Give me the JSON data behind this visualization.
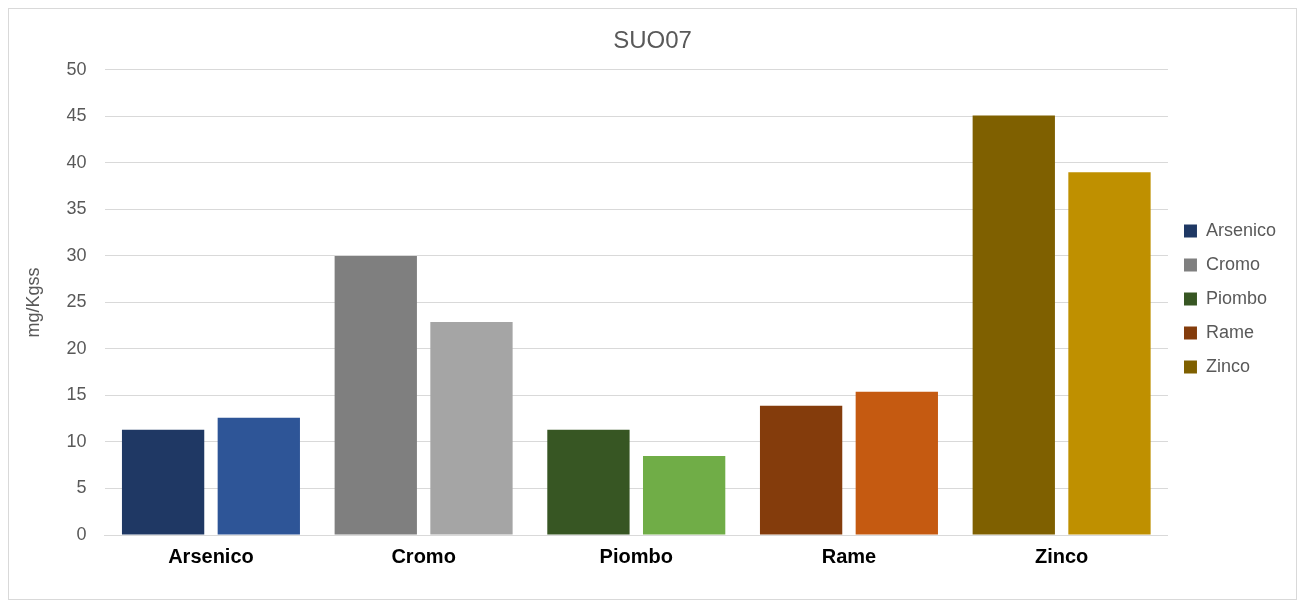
{
  "chart_data": {
    "type": "bar",
    "title": "SUO07",
    "ylabel": "mg/Kgss",
    "categories": [
      "Arsenico",
      "Cromo",
      "Piombo",
      "Rame",
      "Zinco"
    ],
    "series": [
      {
        "name": "Arsenico",
        "color": "#1f3864",
        "values": [
          11.3,
          null,
          null,
          null,
          null
        ]
      },
      {
        "color": "#2e5597",
        "values": [
          12.6,
          null,
          null,
          null,
          null
        ]
      },
      {
        "name": "Cromo",
        "color": "#7f7f7f",
        "values": [
          null,
          30.0,
          null,
          null,
          null
        ]
      },
      {
        "color": "#a5a5a5",
        "values": [
          null,
          22.9,
          null,
          null,
          null
        ]
      },
      {
        "name": "Piombo",
        "color": "#375623",
        "values": [
          null,
          null,
          11.3,
          null,
          null
        ]
      },
      {
        "color": "#70ad47",
        "values": [
          null,
          null,
          8.5,
          null,
          null
        ]
      },
      {
        "name": "Rame",
        "color": "#843c0c",
        "values": [
          null,
          null,
          null,
          13.9,
          null
        ]
      },
      {
        "color": "#c55a11",
        "values": [
          null,
          null,
          null,
          15.4,
          null
        ]
      },
      {
        "name": "Zinco",
        "color": "#7f6000",
        "values": [
          null,
          null,
          null,
          null,
          45.1
        ]
      },
      {
        "color": "#bf9000",
        "values": [
          null,
          null,
          null,
          null,
          39.0
        ]
      }
    ],
    "ylim": [
      0,
      50
    ],
    "yticks": [
      0,
      5,
      10,
      15,
      20,
      25,
      30,
      35,
      40,
      45,
      50
    ],
    "grid": "y",
    "legend": "right"
  }
}
